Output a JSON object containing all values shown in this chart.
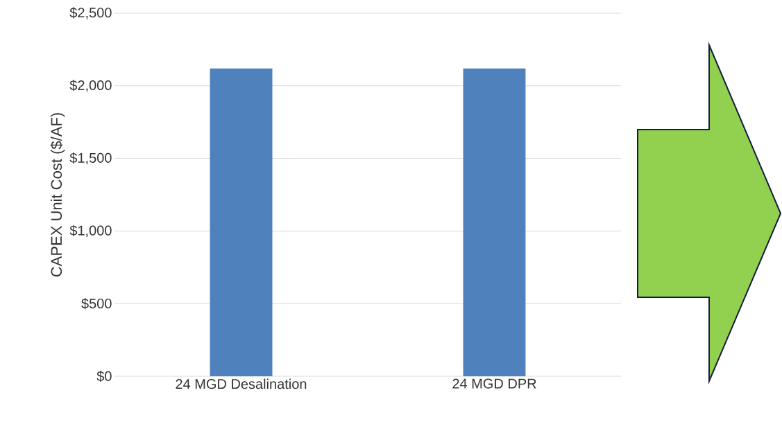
{
  "chart_data": {
    "type": "bar",
    "ylabel": "CAPEX Unit Cost ($/AF)",
    "categories": [
      "24 MGD Desalination",
      "24 MGD DPR"
    ],
    "values": [
      2120,
      2120
    ],
    "color": "#4f81bd",
    "ylim": [
      0,
      2500
    ],
    "yticks": [
      {
        "value": 0,
        "label": "$0"
      },
      {
        "value": 500,
        "label": "$500"
      },
      {
        "value": 1000,
        "label": "$1,000"
      },
      {
        "value": 1500,
        "label": "$1,500"
      },
      {
        "value": 2000,
        "label": "$2,000"
      },
      {
        "value": 2500,
        "label": "$2,500"
      }
    ],
    "grid": "y"
  }
}
